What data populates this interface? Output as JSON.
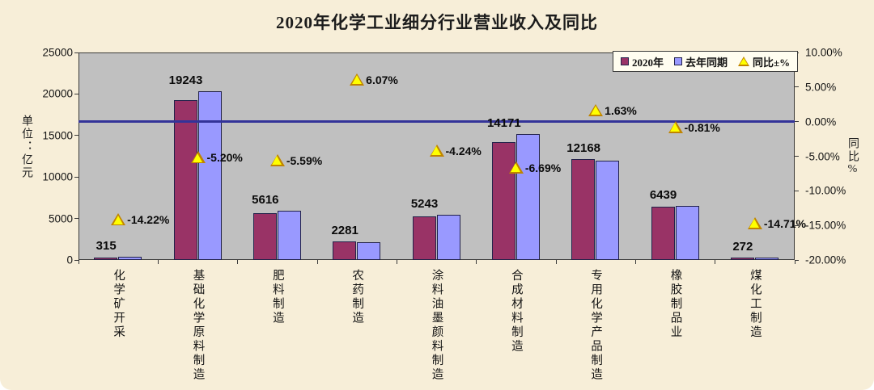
{
  "page": {
    "background": "#f7eed8"
  },
  "chart_data": {
    "type": "bar",
    "title": "2020年化学工业细分行业营业收入及同比",
    "categories": [
      "化学矿开采",
      "基础化学原料制造",
      "肥料制造",
      "农药制造",
      "涂料油墨颜料制造",
      "合成材料制造",
      "专用化学产品制造",
      "橡胶制品业",
      "煤化工制造"
    ],
    "series": [
      {
        "name": "2020年",
        "kind": "bar",
        "axis": "left",
        "color": "#993366",
        "values": [
          315,
          19243,
          5616,
          2281,
          5243,
          14171,
          12168,
          6439,
          272
        ],
        "data_labels": [
          "315",
          "19243",
          "5616",
          "2281",
          "5243",
          "14171",
          "12168",
          "6439",
          "272"
        ]
      },
      {
        "name": "去年同期",
        "kind": "bar",
        "axis": "left",
        "color": "#9999ff",
        "values_estimated_from_yoy": true,
        "values": [
          367,
          20298,
          5948,
          2150,
          5475,
          15187,
          11973,
          6492,
          319
        ]
      },
      {
        "name": "同比±%",
        "kind": "triangle-marker",
        "axis": "right",
        "color": "#ffff00",
        "values": [
          -14.22,
          -5.2,
          -5.59,
          6.07,
          -4.24,
          -6.69,
          1.63,
          -0.81,
          -14.71
        ],
        "data_labels": [
          "-14.22%",
          "-5.20%",
          "-5.59%",
          "6.07%",
          "-4.24%",
          "-6.69%",
          "1.63%",
          "-0.81%",
          "-14.71%"
        ]
      }
    ],
    "left_axis": {
      "title": "单位：亿元",
      "min": 0,
      "max": 25000,
      "tick_labels": [
        "0",
        "5000",
        "10000",
        "15000",
        "20000",
        "25000"
      ]
    },
    "right_axis": {
      "title": "同比%",
      "min": -20,
      "max": 10,
      "tick_labels": [
        "-20.00%",
        "-15.00%",
        "-10.00%",
        "-5.00%",
        "0.00%",
        "5.00%",
        "10.00%"
      ]
    },
    "legend_position": "top-right",
    "grid": "off",
    "zero_line": {
      "value": 0,
      "color": "#333399"
    },
    "plot_background": "#c0c0c0"
  }
}
